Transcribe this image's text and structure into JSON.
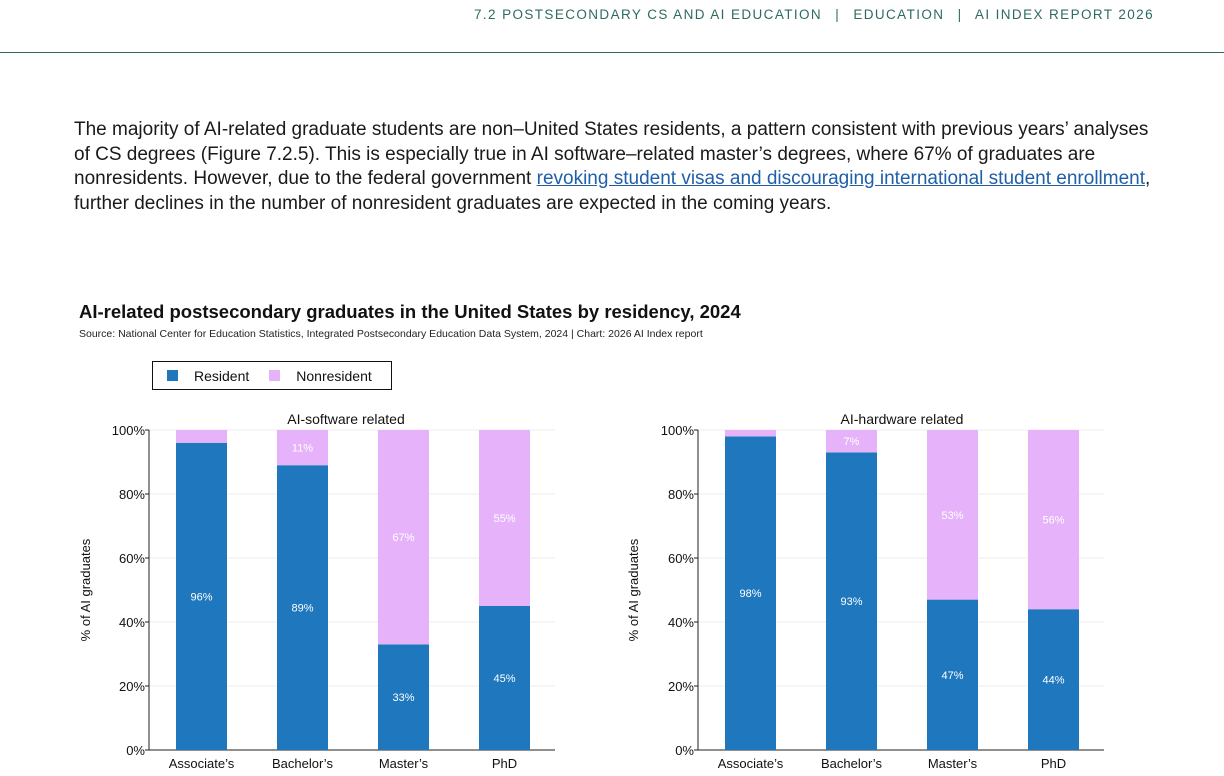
{
  "header": {
    "section": "7.2 POSTSECONDARY CS AND AI EDUCATION",
    "chapter": "EDUCATION",
    "report": "AI INDEX REPORT 2026",
    "separator": "|"
  },
  "body": {
    "text_before_link": "The majority of AI-related graduate students are non–United States residents, a pattern consistent with previous years’ analyses of CS degrees (Figure 7.2.5). This is especially true in AI software–related master’s degrees, where 67% of graduates are nonresidents. However, due to the federal government ",
    "link_text": "revoking student visas and discouraging international student enrollment",
    "text_after_link": ", further declines in the number of nonresident graduates are expected in the coming years."
  },
  "figure": {
    "title": "AI-related postsecondary graduates in the United States by residency, 2024",
    "source": "Source: National Center for Education Statistics, Integrated Postsecondary Education Data System, 2024 | Chart: 2026 AI Index report"
  },
  "legend": [
    {
      "label": "Resident",
      "color": "#1f77bd"
    },
    {
      "label": "Nonresident",
      "color": "#e6b3fb"
    }
  ],
  "chart_data": [
    {
      "type": "bar",
      "stacked": true,
      "title": "AI-software related",
      "ylabel": "% of AI graduates",
      "ylim": [
        0,
        100
      ],
      "yticks": [
        "0%",
        "20%",
        "40%",
        "60%",
        "80%",
        "100%"
      ],
      "categories": [
        "Associate’s",
        "Bachelor’s",
        "Master’s",
        "PhD"
      ],
      "series": [
        {
          "name": "Resident",
          "values": [
            96,
            89,
            33,
            45
          ],
          "labels": [
            "96%",
            "89%",
            "33%",
            "45%"
          ]
        },
        {
          "name": "Nonresident",
          "values": [
            4,
            11,
            67,
            55
          ],
          "labels": [
            "",
            "11%",
            "67%",
            "55%"
          ]
        }
      ]
    },
    {
      "type": "bar",
      "stacked": true,
      "title": "AI-hardware related",
      "ylabel": "% of AI graduates",
      "ylim": [
        0,
        100
      ],
      "yticks": [
        "0%",
        "20%",
        "40%",
        "60%",
        "80%",
        "100%"
      ],
      "categories": [
        "Associate’s",
        "Bachelor’s",
        "Master’s",
        "PhD"
      ],
      "series": [
        {
          "name": "Resident",
          "values": [
            98,
            93,
            47,
            44
          ],
          "labels": [
            "98%",
            "93%",
            "47%",
            "44%"
          ]
        },
        {
          "name": "Nonresident",
          "values": [
            2,
            7,
            53,
            56
          ],
          "labels": [
            "",
            "7%",
            "53%",
            "56%"
          ]
        }
      ]
    }
  ]
}
